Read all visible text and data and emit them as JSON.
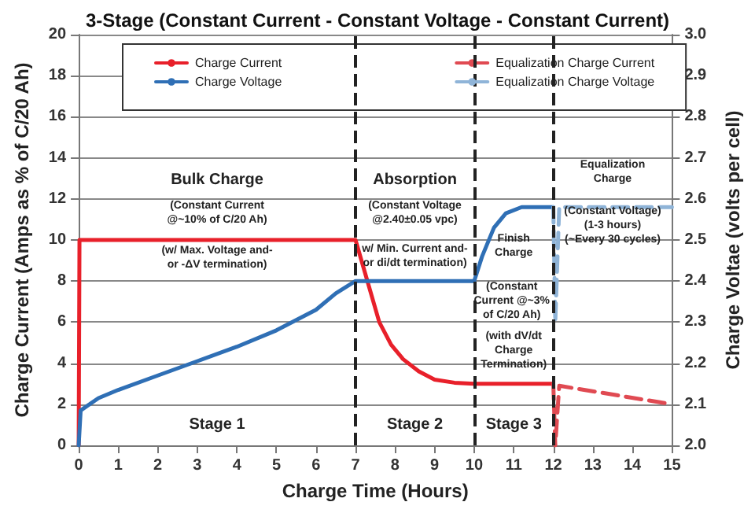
{
  "chart_data": {
    "type": "line",
    "title": "3-Stage (Constant Current - Constant Voltage - Constant Current)",
    "xlabel": "Charge Time (Hours)",
    "ylabel": "Charge Current (Amps as % of C/20 Ah)",
    "y2label": "Charge Voltae (volts per cell)",
    "xlim": [
      0,
      15
    ],
    "xticks": [
      0,
      1,
      2,
      3,
      4,
      5,
      6,
      7,
      8,
      9,
      10,
      11,
      12,
      13,
      14,
      15
    ],
    "ylim": [
      0,
      20
    ],
    "yticks": [
      0,
      2,
      4,
      6,
      8,
      10,
      12,
      14,
      16,
      18,
      20
    ],
    "y2lim": [
      2,
      3
    ],
    "y2ticks": [
      {
        "value": 2,
        "label": "2.0"
      },
      {
        "value": 2.1,
        "label": "2.1"
      },
      {
        "value": 2.2,
        "label": "2.2"
      },
      {
        "value": 2.3,
        "label": "2.3"
      },
      {
        "value": 2.4,
        "label": "2.4"
      },
      {
        "value": 2.5,
        "label": "2.5"
      },
      {
        "value": 2.6,
        "label": "2.6"
      },
      {
        "value": 2.7,
        "label": "2.7"
      },
      {
        "value": 2.8,
        "label": "2.8"
      },
      {
        "value": 2.9,
        "label": "2.9"
      },
      {
        "value": 3,
        "label": "3.0"
      }
    ],
    "series": [
      {
        "name": "Charge Current",
        "color": "#e8202a",
        "x": [
          0,
          0.02,
          7,
          7.3,
          7.6,
          7.9,
          8.2,
          8.6,
          9,
          9.5,
          10,
          12
        ],
        "values": [
          0,
          10,
          10,
          8,
          6,
          4.9,
          4.2,
          3.6,
          3.2,
          3.05,
          3,
          3
        ]
      },
      {
        "name": "Equalization Charge Current",
        "color": "#e04a52",
        "line_style": "dashed",
        "x": [
          12,
          12.05,
          12.15,
          15
        ],
        "values": [
          3,
          0,
          2.9,
          2
        ]
      },
      {
        "name": "Charge Voltage",
        "color": "#2f6fb5",
        "axis": "y2",
        "x": [
          0,
          0.05,
          0.5,
          1,
          2,
          3,
          4,
          5,
          6,
          6.5,
          7,
          10,
          10.2,
          10.5,
          10.8,
          11.2,
          12
        ],
        "values": [
          2,
          2.085,
          2.115,
          2.135,
          2.17,
          2.205,
          2.24,
          2.28,
          2.33,
          2.37,
          2.4,
          2.4,
          2.46,
          2.53,
          2.565,
          2.58,
          2.58
        ]
      },
      {
        "name": "Equalization Charge Voltage",
        "color": "#8fb4d8",
        "axis": "y2",
        "line_style": "dashed",
        "x": [
          12,
          12.05,
          12.15,
          15
        ],
        "values": [
          2.58,
          2.3,
          2.58,
          2.58
        ]
      }
    ],
    "ref_lines": [
      {
        "axis": "x",
        "value": 7,
        "color": "#222222",
        "line_style": "dashed"
      },
      {
        "axis": "x",
        "value": 10,
        "color": "#222222",
        "line_style": "dashed"
      },
      {
        "axis": "x",
        "value": 12,
        "color": "#222222",
        "line_style": "dashed"
      }
    ],
    "annotations": [
      "Bulk Charge",
      "(Constant Current\n@~10% of C/20 Ah)",
      "(w/ Max. Voltage and-\nor -ΔV termination)",
      "Stage 1",
      "Absorption",
      "(Constant Voltage\n@2.40±0.05 vpc)",
      "w/ Min. Current and-\nor di/dt termination)",
      "Stage 2",
      "Finish\nCharge",
      "(Constant\nCurrent @~3%\nof C/20 Ah)",
      "(with dV/dt\nCharge\nTermination)",
      "Stage 3",
      "Equalization\nCharge",
      "(Constant Voltage)\n(1-3 hours)\n(~Every 30 cycles)"
    ],
    "grid": "y",
    "legend": "top",
    "marker": "none",
    "line_style": "solid"
  }
}
